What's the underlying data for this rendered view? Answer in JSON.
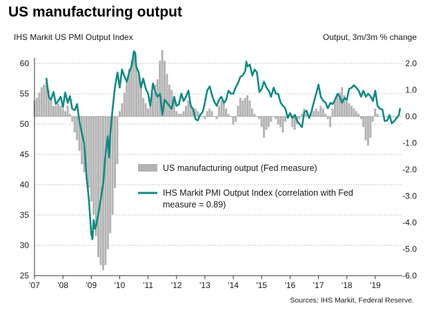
{
  "chart_data": {
    "type": "bar+line",
    "title": "US manufacturing output",
    "ylabel_left": "IHS Markit US PMI Output  Index",
    "ylabel_right": "Output,  3m/3m  % change",
    "source": "Sources: IHS Markit, Federal Reserve.",
    "x_ticks": [
      "'07",
      "'08",
      "'09",
      "'10",
      "'11",
      "'12",
      "'13",
      "'14",
      "'15",
      "'16",
      "'17",
      "'18",
      "'19"
    ],
    "x_range": [
      2007.0,
      2019.95
    ],
    "y_left": {
      "min": 25,
      "max": 60,
      "ticks": [
        25,
        30,
        35,
        40,
        45,
        50,
        55,
        60
      ]
    },
    "y_right": {
      "min": -6,
      "max": 2,
      "ticks": [
        "2.0",
        "1.0",
        "0.0",
        "-1.0",
        "-2.0",
        "-3.0",
        "-4.0",
        "-5.0",
        "-6.0"
      ]
    },
    "legend": [
      {
        "name": "US manufacturing output (Fed measure)",
        "type": "bar",
        "color": "#b3b3b3"
      },
      {
        "name": "IHS Markit PMI Output Index (correlation with Fed measure = 0.89)",
        "type": "line",
        "color": "#0e8b82"
      }
    ],
    "legend_lines": [
      "US manufacturing output (Fed measure)",
      "IHS Markit PMI Output Index (correlation with Fed",
      "measure = 0.89)"
    ],
    "series": [
      {
        "name": "US manufacturing output (Fed measure)",
        "axis": "right",
        "color": "#b3b3b3",
        "start": 2007.0,
        "step": 0.0833,
        "values": [
          0.6,
          0.7,
          0.9,
          1.1,
          1.2,
          1.3,
          1.0,
          0.6,
          0.4,
          0.4,
          0.5,
          0.4,
          0.3,
          0.2,
          0.4,
          0.1,
          -0.2,
          -0.6,
          -0.9,
          -1.3,
          -1.8,
          -2.1,
          -2.4,
          -2.7,
          -3.2,
          -3.7,
          -4.5,
          -5.3,
          -5.6,
          -5.8,
          -5.6,
          -5.0,
          -4.4,
          -3.7,
          -2.7,
          -1.8,
          0.2,
          0.5,
          0.9,
          1.4,
          1.8,
          2.1,
          2.4,
          2.0,
          1.6,
          1.1,
          0.7,
          0.5,
          0.3,
          0.5,
          0.9,
          1.2,
          1.4,
          2.1,
          2.5,
          2.1,
          1.6,
          1.2,
          1.0,
          0.6,
          0.2,
          0.1,
          0.1,
          0.2,
          0.4,
          0.6,
          0.5,
          0.3,
          0.3,
          0.2,
          0.1,
          0.0,
          -0.1,
          0.2,
          0.3,
          0.2,
          0.0,
          -0.1,
          0.4,
          0.6,
          0.5,
          0.3,
          0.1,
          0.0,
          -0.3,
          -0.2,
          0.4,
          0.7,
          0.6,
          0.7,
          0.8,
          0.6,
          0.3,
          0.1,
          0.0,
          -0.1,
          -0.4,
          -0.8,
          -0.5,
          -0.4,
          -0.2,
          0.0,
          -0.1,
          -0.3,
          -0.4,
          -0.6,
          -0.2,
          0.1,
          0.0,
          -0.4,
          -0.5,
          -0.3,
          -0.1,
          0.1,
          0.3,
          0.2,
          0.0,
          0.1,
          0.2,
          0.3,
          0.2,
          0.4,
          0.3,
          0.1,
          -0.1,
          -0.4,
          0.3,
          0.6,
          0.8,
          0.9,
          1.1,
          0.8,
          0.6,
          0.5,
          0.4,
          0.3,
          0.2,
          0.1,
          -0.1,
          -0.4,
          -0.9,
          -1.1,
          -0.8,
          -0.2,
          0.3,
          0.1
        ]
      },
      {
        "name": "IHS Markit PMI Output Index",
        "axis": "left",
        "color": "#0e8b82",
        "points": [
          [
            2007.42,
            57.5
          ],
          [
            2007.5,
            54.5
          ],
          [
            2007.58,
            54.0
          ],
          [
            2007.67,
            55.3
          ],
          [
            2007.75,
            53.3
          ],
          [
            2007.83,
            53.8
          ],
          [
            2007.92,
            54.5
          ],
          [
            2008.0,
            52.8
          ],
          [
            2008.08,
            55.2
          ],
          [
            2008.17,
            53.5
          ],
          [
            2008.25,
            54.6
          ],
          [
            2008.33,
            52.5
          ],
          [
            2008.42,
            52.3
          ],
          [
            2008.5,
            53.3
          ],
          [
            2008.58,
            50.5
          ],
          [
            2008.67,
            48.5
          ],
          [
            2008.75,
            46.8
          ],
          [
            2008.83,
            41.5
          ],
          [
            2008.92,
            37.3
          ],
          [
            2009.0,
            31.8
          ],
          [
            2009.04,
            31.0
          ],
          [
            2009.08,
            34.2
          ],
          [
            2009.13,
            32.7
          ],
          [
            2009.17,
            33.2
          ],
          [
            2009.25,
            35.3
          ],
          [
            2009.33,
            37.5
          ],
          [
            2009.42,
            40.2
          ],
          [
            2009.5,
            45.0
          ],
          [
            2009.58,
            48.0
          ],
          [
            2009.63,
            44.5
          ],
          [
            2009.67,
            48.5
          ],
          [
            2009.75,
            52.5
          ],
          [
            2009.83,
            56.0
          ],
          [
            2009.92,
            58.5
          ],
          [
            2010.0,
            56.0
          ],
          [
            2010.08,
            59.0
          ],
          [
            2010.17,
            57.8
          ],
          [
            2010.25,
            57.0
          ],
          [
            2010.33,
            58.5
          ],
          [
            2010.42,
            59.6
          ],
          [
            2010.5,
            62.0
          ],
          [
            2010.55,
            61.7
          ],
          [
            2010.58,
            59.5
          ],
          [
            2010.67,
            58.5
          ],
          [
            2010.75,
            56.0
          ],
          [
            2010.83,
            57.5
          ],
          [
            2010.92,
            55.8
          ],
          [
            2011.0,
            55.0
          ],
          [
            2011.08,
            53.0
          ],
          [
            2011.17,
            56.7
          ],
          [
            2011.25,
            55.3
          ],
          [
            2011.33,
            54.5
          ],
          [
            2011.42,
            55.0
          ],
          [
            2011.5,
            51.5
          ],
          [
            2011.58,
            54.0
          ],
          [
            2011.67,
            53.5
          ],
          [
            2011.75,
            53.0
          ],
          [
            2011.83,
            52.5
          ],
          [
            2011.92,
            54.5
          ],
          [
            2012.0,
            53.0
          ],
          [
            2012.08,
            53.2
          ],
          [
            2012.17,
            55.0
          ],
          [
            2012.25,
            53.8
          ],
          [
            2012.33,
            54.5
          ],
          [
            2012.42,
            55.5
          ],
          [
            2012.5,
            53.0
          ],
          [
            2012.58,
            52.5
          ],
          [
            2012.67,
            50.8
          ],
          [
            2012.75,
            50.6
          ],
          [
            2012.83,
            51.5
          ],
          [
            2012.92,
            52.0
          ],
          [
            2013.0,
            53.5
          ],
          [
            2013.08,
            55.5
          ],
          [
            2013.17,
            56.2
          ],
          [
            2013.25,
            54.8
          ],
          [
            2013.33,
            53.7
          ],
          [
            2013.42,
            53.0
          ],
          [
            2013.5,
            54.0
          ],
          [
            2013.58,
            54.5
          ],
          [
            2013.67,
            53.5
          ],
          [
            2013.75,
            54.0
          ],
          [
            2013.83,
            55.5
          ],
          [
            2013.92,
            55.0
          ],
          [
            2014.0,
            55.0
          ],
          [
            2014.08,
            56.0
          ],
          [
            2014.17,
            56.8
          ],
          [
            2014.25,
            57.8
          ],
          [
            2014.33,
            58.0
          ],
          [
            2014.42,
            58.7
          ],
          [
            2014.46,
            60.3
          ],
          [
            2014.5,
            59.5
          ],
          [
            2014.58,
            59.8
          ],
          [
            2014.67,
            58.0
          ],
          [
            2014.75,
            59.0
          ],
          [
            2014.83,
            58.5
          ],
          [
            2014.92,
            55.3
          ],
          [
            2015.0,
            55.8
          ],
          [
            2015.08,
            57.0
          ],
          [
            2015.17,
            56.0
          ],
          [
            2015.25,
            55.5
          ],
          [
            2015.33,
            54.5
          ],
          [
            2015.42,
            56.0
          ],
          [
            2015.5,
            55.0
          ],
          [
            2015.58,
            55.0
          ],
          [
            2015.67,
            53.5
          ],
          [
            2015.75,
            53.0
          ],
          [
            2015.83,
            52.6
          ],
          [
            2015.92,
            51.0
          ],
          [
            2016.0,
            51.8
          ],
          [
            2016.08,
            51.0
          ],
          [
            2016.17,
            51.5
          ],
          [
            2016.25,
            50.5
          ],
          [
            2016.33,
            50.0
          ],
          [
            2016.42,
            49.5
          ],
          [
            2016.5,
            52.0
          ],
          [
            2016.58,
            52.2
          ],
          [
            2016.67,
            51.0
          ],
          [
            2016.75,
            52.0
          ],
          [
            2016.83,
            53.5
          ],
          [
            2016.92,
            55.0
          ],
          [
            2017.0,
            56.5
          ],
          [
            2017.08,
            54.5
          ],
          [
            2017.17,
            53.8
          ],
          [
            2017.25,
            53.5
          ],
          [
            2017.33,
            52.6
          ],
          [
            2017.42,
            53.5
          ],
          [
            2017.5,
            53.3
          ],
          [
            2017.58,
            54.0
          ],
          [
            2017.67,
            55.0
          ],
          [
            2017.75,
            54.5
          ],
          [
            2017.83,
            53.5
          ],
          [
            2017.92,
            54.3
          ],
          [
            2018.0,
            54.0
          ],
          [
            2018.08,
            55.8
          ],
          [
            2018.17,
            56.0
          ],
          [
            2018.25,
            56.4
          ],
          [
            2018.33,
            56.0
          ],
          [
            2018.42,
            55.5
          ],
          [
            2018.5,
            54.5
          ],
          [
            2018.58,
            55.5
          ],
          [
            2018.67,
            54.5
          ],
          [
            2018.75,
            55.0
          ],
          [
            2018.83,
            54.6
          ],
          [
            2018.92,
            53.8
          ],
          [
            2019.0,
            55.5
          ],
          [
            2019.08,
            53.0
          ],
          [
            2019.17,
            52.5
          ],
          [
            2019.25,
            52.4
          ],
          [
            2019.33,
            50.5
          ],
          [
            2019.42,
            50.6
          ],
          [
            2019.5,
            51.5
          ],
          [
            2019.58,
            50.1
          ],
          [
            2019.67,
            50.5
          ],
          [
            2019.75,
            51.0
          ],
          [
            2019.83,
            51.5
          ],
          [
            2019.87,
            52.5
          ]
        ]
      }
    ]
  }
}
